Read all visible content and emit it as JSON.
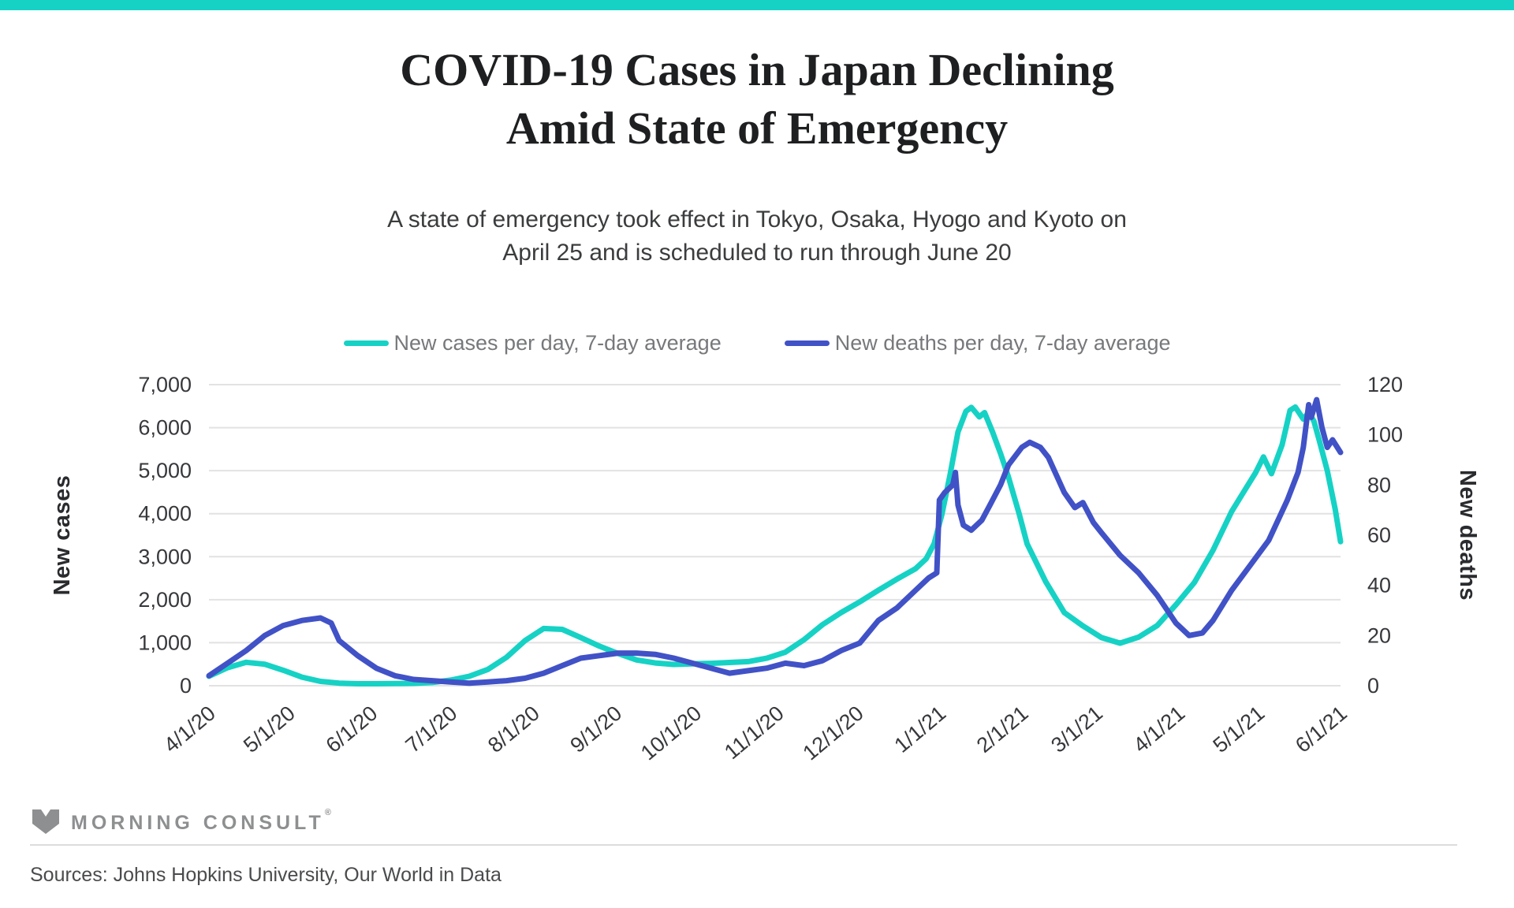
{
  "page": {
    "top_bar_color": "#16d2c5",
    "accent_teal": "#16d2c5",
    "accent_blue": "#4152c7",
    "grid_color": "#e2e2e2"
  },
  "header": {
    "title_lines": [
      "COVID-19 Cases in Japan Declining",
      "Amid State of Emergency"
    ],
    "subtitle_lines": [
      "A state of emergency took effect in Tokyo, Osaka, Hyogo and Kyoto on",
      "April 25 and is scheduled to run through June 20"
    ]
  },
  "legend": {
    "items": [
      {
        "label": "New cases per day, 7-day average",
        "color": "#16d2c5"
      },
      {
        "label": "New deaths per day, 7-day average",
        "color": "#4152c7"
      }
    ]
  },
  "chart_data": {
    "type": "line",
    "title": "COVID-19 Cases in Japan Declining Amid State of Emergency",
    "grid": true,
    "legend_position": "top",
    "x_axis": {
      "unit": "days since 4/1/20",
      "range_days": 426,
      "ticks": [
        {
          "label": "4/1/20",
          "day": 0
        },
        {
          "label": "5/1/20",
          "day": 30
        },
        {
          "label": "6/1/20",
          "day": 61
        },
        {
          "label": "7/1/20",
          "day": 91
        },
        {
          "label": "8/1/20",
          "day": 122
        },
        {
          "label": "9/1/20",
          "day": 153
        },
        {
          "label": "10/1/20",
          "day": 183
        },
        {
          "label": "11/1/20",
          "day": 214
        },
        {
          "label": "12/1/20",
          "day": 244
        },
        {
          "label": "1/1/21",
          "day": 275
        },
        {
          "label": "2/1/21",
          "day": 306
        },
        {
          "label": "3/1/21",
          "day": 334
        },
        {
          "label": "4/1/21",
          "day": 365
        },
        {
          "label": "5/1/21",
          "day": 395
        },
        {
          "label": "6/1/21",
          "day": 426
        }
      ]
    },
    "y_left": {
      "title": "New cases",
      "min": 0,
      "max": 7000,
      "tick_step": 1000,
      "tick_values": [
        0,
        1000,
        2000,
        3000,
        4000,
        5000,
        6000,
        7000
      ],
      "tick_labels": [
        "0",
        "1,000",
        "2,000",
        "3,000",
        "4,000",
        "5,000",
        "6,000",
        "7,000"
      ]
    },
    "y_right": {
      "title": "New deaths",
      "min": 0,
      "max": 120,
      "tick_step": 20,
      "tick_values": [
        0,
        20,
        40,
        60,
        80,
        100,
        120
      ],
      "tick_labels": [
        "0",
        "20",
        "40",
        "60",
        "80",
        "100",
        "120"
      ]
    },
    "series": [
      {
        "name": "New cases per day, 7-day average",
        "axis": "left",
        "color": "#16d2c5",
        "points": [
          [
            0,
            220
          ],
          [
            7,
            420
          ],
          [
            14,
            545
          ],
          [
            21,
            500
          ],
          [
            28,
            360
          ],
          [
            35,
            200
          ],
          [
            42,
            100
          ],
          [
            49,
            60
          ],
          [
            56,
            45
          ],
          [
            63,
            45
          ],
          [
            70,
            50
          ],
          [
            77,
            55
          ],
          [
            84,
            75
          ],
          [
            91,
            130
          ],
          [
            98,
            220
          ],
          [
            105,
            380
          ],
          [
            112,
            660
          ],
          [
            119,
            1050
          ],
          [
            126,
            1330
          ],
          [
            133,
            1310
          ],
          [
            140,
            1120
          ],
          [
            147,
            920
          ],
          [
            154,
            750
          ],
          [
            161,
            600
          ],
          [
            168,
            530
          ],
          [
            175,
            495
          ],
          [
            182,
            510
          ],
          [
            189,
            520
          ],
          [
            196,
            540
          ],
          [
            203,
            560
          ],
          [
            210,
            640
          ],
          [
            217,
            780
          ],
          [
            224,
            1070
          ],
          [
            231,
            1420
          ],
          [
            238,
            1700
          ],
          [
            245,
            1950
          ],
          [
            252,
            2220
          ],
          [
            259,
            2480
          ],
          [
            266,
            2720
          ],
          [
            270,
            2950
          ],
          [
            273,
            3300
          ],
          [
            276,
            4000
          ],
          [
            279,
            4900
          ],
          [
            282,
            5900
          ],
          [
            285,
            6380
          ],
          [
            287,
            6470
          ],
          [
            290,
            6250
          ],
          [
            292,
            6350
          ],
          [
            295,
            5900
          ],
          [
            298,
            5400
          ],
          [
            301,
            4850
          ],
          [
            305,
            4000
          ],
          [
            308,
            3300
          ],
          [
            315,
            2420
          ],
          [
            322,
            1700
          ],
          [
            329,
            1390
          ],
          [
            336,
            1120
          ],
          [
            343,
            990
          ],
          [
            350,
            1130
          ],
          [
            357,
            1400
          ],
          [
            364,
            1880
          ],
          [
            371,
            2400
          ],
          [
            378,
            3150
          ],
          [
            385,
            4050
          ],
          [
            390,
            4550
          ],
          [
            394,
            4950
          ],
          [
            397,
            5320
          ],
          [
            400,
            4930
          ],
          [
            404,
            5600
          ],
          [
            407,
            6400
          ],
          [
            409,
            6480
          ],
          [
            412,
            6200
          ],
          [
            414,
            6350
          ],
          [
            416,
            6150
          ],
          [
            418,
            5700
          ],
          [
            421,
            5000
          ],
          [
            424,
            4100
          ],
          [
            426,
            3350
          ]
        ]
      },
      {
        "name": "New deaths per day, 7-day average",
        "axis": "right",
        "color": "#4152c7",
        "points": [
          [
            0,
            4
          ],
          [
            7,
            9
          ],
          [
            14,
            14
          ],
          [
            21,
            20
          ],
          [
            28,
            24
          ],
          [
            35,
            26
          ],
          [
            42,
            27
          ],
          [
            46,
            25
          ],
          [
            49,
            18
          ],
          [
            56,
            12
          ],
          [
            63,
            7
          ],
          [
            70,
            4
          ],
          [
            77,
            2.5
          ],
          [
            84,
            2
          ],
          [
            91,
            1.5
          ],
          [
            98,
            1
          ],
          [
            105,
            1.5
          ],
          [
            112,
            2
          ],
          [
            119,
            3
          ],
          [
            126,
            5
          ],
          [
            133,
            8
          ],
          [
            140,
            11
          ],
          [
            147,
            12
          ],
          [
            154,
            13
          ],
          [
            161,
            13
          ],
          [
            168,
            12.5
          ],
          [
            175,
            11
          ],
          [
            182,
            9
          ],
          [
            189,
            7
          ],
          [
            196,
            5
          ],
          [
            203,
            6
          ],
          [
            210,
            7
          ],
          [
            217,
            9
          ],
          [
            224,
            8
          ],
          [
            231,
            10
          ],
          [
            238,
            14
          ],
          [
            245,
            17
          ],
          [
            252,
            26
          ],
          [
            259,
            31
          ],
          [
            266,
            38
          ],
          [
            271,
            43
          ],
          [
            274,
            45
          ],
          [
            275,
            74
          ],
          [
            277,
            77
          ],
          [
            280,
            80
          ],
          [
            281,
            85
          ],
          [
            282,
            72
          ],
          [
            284,
            64
          ],
          [
            287,
            62
          ],
          [
            291,
            66
          ],
          [
            294,
            72
          ],
          [
            298,
            80
          ],
          [
            301,
            88
          ],
          [
            306,
            95
          ],
          [
            309,
            97
          ],
          [
            313,
            95
          ],
          [
            316,
            91
          ],
          [
            322,
            77
          ],
          [
            326,
            71
          ],
          [
            329,
            73
          ],
          [
            333,
            65
          ],
          [
            336,
            61
          ],
          [
            343,
            52
          ],
          [
            350,
            45
          ],
          [
            357,
            36
          ],
          [
            364,
            25
          ],
          [
            369,
            20
          ],
          [
            374,
            21
          ],
          [
            378,
            26
          ],
          [
            385,
            38
          ],
          [
            392,
            48
          ],
          [
            399,
            58
          ],
          [
            406,
            74
          ],
          [
            410,
            85
          ],
          [
            412,
            95
          ],
          [
            414,
            112
          ],
          [
            415,
            107
          ],
          [
            417,
            114
          ],
          [
            419,
            103
          ],
          [
            421,
            95
          ],
          [
            423,
            98
          ],
          [
            426,
            93
          ]
        ]
      }
    ]
  },
  "footer": {
    "brand": "MORNING CONSULT",
    "registered_mark": "®",
    "sources": "Sources: Johns Hopkins University, Our World in Data"
  }
}
